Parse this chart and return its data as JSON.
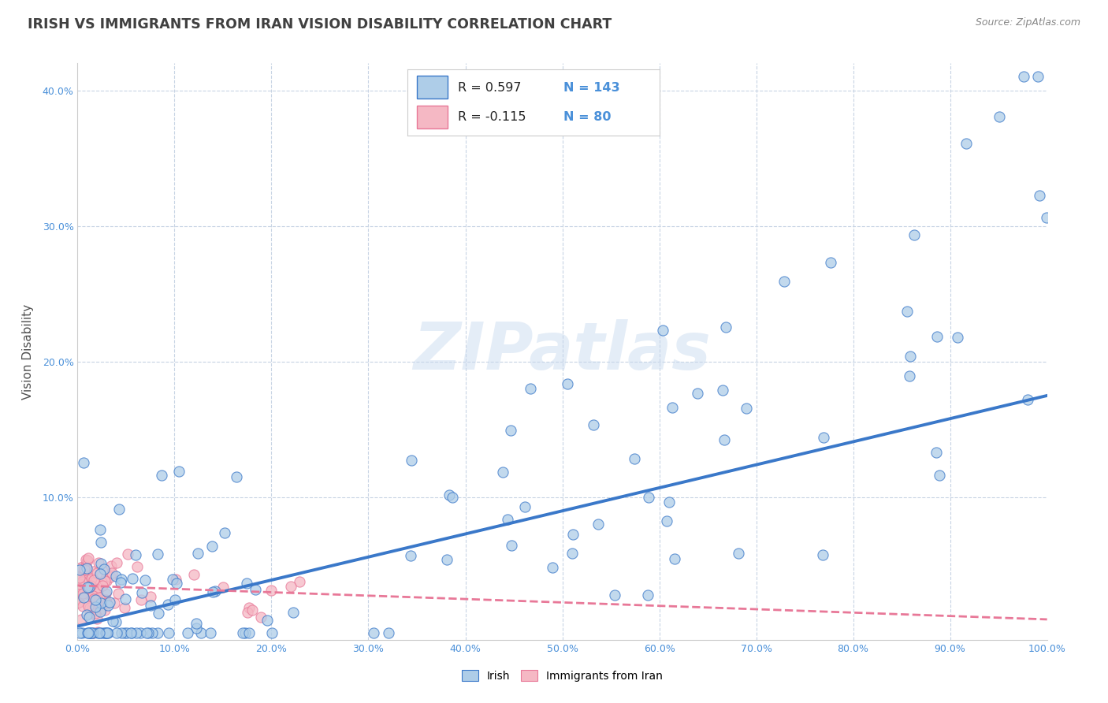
{
  "title": "IRISH VS IMMIGRANTS FROM IRAN VISION DISABILITY CORRELATION CHART",
  "source": "Source: ZipAtlas.com",
  "xlabel": "",
  "ylabel": "Vision Disability",
  "xlim": [
    0.0,
    1.0
  ],
  "ylim": [
    -0.005,
    0.42
  ],
  "irish_R": 0.597,
  "irish_N": 143,
  "iran_R": -0.115,
  "iran_N": 80,
  "irish_color": "#aecde8",
  "iran_color": "#f5b8c4",
  "irish_line_color": "#3a78c9",
  "iran_line_color": "#e87898",
  "background_color": "#ffffff",
  "grid_color": "#c8d4e4",
  "title_color": "#404040",
  "axis_color": "#4a90d9",
  "watermark": "ZIPatlas",
  "xtick_labels": [
    "0.0%",
    "10.0%",
    "20.0%",
    "30.0%",
    "40.0%",
    "50.0%",
    "60.0%",
    "70.0%",
    "80.0%",
    "90.0%",
    "100.0%"
  ],
  "ytick_labels": [
    "",
    "10.0%",
    "20.0%",
    "30.0%",
    "40.0%"
  ],
  "xticks": [
    0.0,
    0.1,
    0.2,
    0.3,
    0.4,
    0.5,
    0.6,
    0.7,
    0.8,
    0.9,
    1.0
  ],
  "yticks": [
    0.0,
    0.1,
    0.2,
    0.3,
    0.4
  ],
  "irish_trend_start": 0.005,
  "irish_trend_end": 0.175,
  "iran_trend_start": 0.035,
  "iran_trend_end": 0.01
}
